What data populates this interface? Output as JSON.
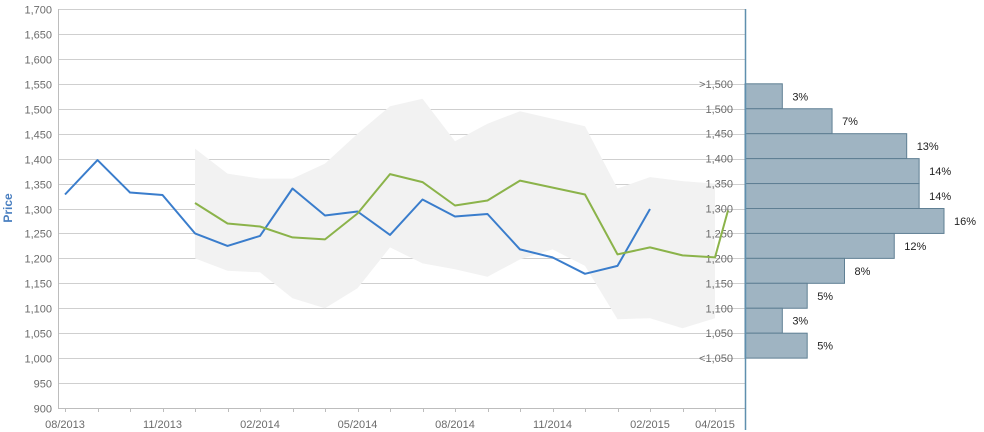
{
  "chart_data": {
    "type": "line",
    "ylabel": "Price",
    "ylim": [
      900,
      1700
    ],
    "yticks": [
      900,
      950,
      1000,
      1050,
      1100,
      1150,
      1200,
      1250,
      1300,
      1350,
      1400,
      1450,
      1500,
      1550,
      1600,
      1650,
      1700
    ],
    "ytick_labels": [
      "900",
      "950",
      "1,000",
      "1,050",
      "1,100",
      "1,150",
      "1,200",
      "1,250",
      "1,300",
      "1,350",
      "1,400",
      "1,450",
      "1,500",
      "1,550",
      "1,600",
      "1,650",
      "1,700"
    ],
    "x_tick_labels": [
      "08/2013",
      "11/2013",
      "02/2014",
      "05/2014",
      "08/2014",
      "11/2014",
      "02/2015",
      "04/2015"
    ],
    "x_month_index": [
      0,
      3,
      6,
      9,
      12,
      15,
      18,
      20
    ],
    "series": [
      {
        "color": "#3a7dcc",
        "x": [
          0,
          1,
          2,
          3,
          4,
          5,
          6,
          7,
          8,
          9,
          10,
          11,
          12,
          13,
          14,
          15,
          16,
          17,
          18
        ],
        "values": [
          1328,
          1397,
          1332,
          1327,
          1250,
          1225,
          1245,
          1340,
          1286,
          1294,
          1247,
          1318,
          1284,
          1289,
          1218,
          1202,
          1169,
          1185,
          1299
        ]
      },
      {
        "color": "#8bb34a",
        "x": [
          4,
          5,
          6,
          7,
          8,
          9,
          10,
          11,
          12,
          13,
          14,
          16,
          17,
          18,
          19,
          20,
          20.4
        ],
        "values": [
          1311,
          1270,
          1264,
          1242,
          1238,
          1290,
          1369,
          1353,
          1306,
          1316,
          1356,
          1328,
          1208,
          1222,
          1206,
          1202,
          1296
        ]
      }
    ],
    "band": {
      "color": "#f2f2f2",
      "x": [
        4,
        5,
        6,
        7,
        8,
        9,
        10,
        11,
        12,
        13,
        14,
        15,
        16,
        17,
        18,
        19,
        20
      ],
      "upper": [
        1420,
        1370,
        1360,
        1360,
        1390,
        1450,
        1505,
        1520,
        1435,
        1470,
        1495,
        1480,
        1465,
        1340,
        1363,
        1355,
        1350
      ],
      "lower": [
        1200,
        1175,
        1172,
        1120,
        1100,
        1140,
        1222,
        1190,
        1178,
        1163,
        1198,
        1218,
        1185,
        1078,
        1080,
        1060,
        1080
      ]
    },
    "histogram": {
      "color": "#9fb4c2",
      "bins": [
        {
          "label": ">1,500",
          "value": 3,
          "text": "3%",
          "low": 1500,
          "high": 1550
        },
        {
          "label": "1,500",
          "value": 7,
          "text": "7%",
          "low": 1450,
          "high": 1500
        },
        {
          "label": "1,450",
          "value": 13,
          "text": "13%",
          "low": 1400,
          "high": 1450
        },
        {
          "label": "1,400",
          "value": 14,
          "text": "14%",
          "low": 1350,
          "high": 1400
        },
        {
          "label": "1,350",
          "value": 14,
          "text": "14%",
          "low": 1300,
          "high": 1350
        },
        {
          "label": "1,300",
          "value": 16,
          "text": "16%",
          "low": 1250,
          "high": 1300
        },
        {
          "label": "1,250",
          "value": 12,
          "text": "12%",
          "low": 1200,
          "high": 1250
        },
        {
          "label": "1,200",
          "value": 8,
          "text": "8%",
          "low": 1150,
          "high": 1200
        },
        {
          "label": "1,150",
          "value": 5,
          "text": "5%",
          "low": 1100,
          "high": 1150
        },
        {
          "label": "1,100",
          "value": 3,
          "text": "3%",
          "low": 1050,
          "high": 1100
        },
        {
          "label": "1,050",
          "value": 5,
          "text": "5%",
          "low": 1000,
          "high": 1050
        }
      ],
      "bottom_label": "<1,050",
      "max_value": 16
    }
  }
}
